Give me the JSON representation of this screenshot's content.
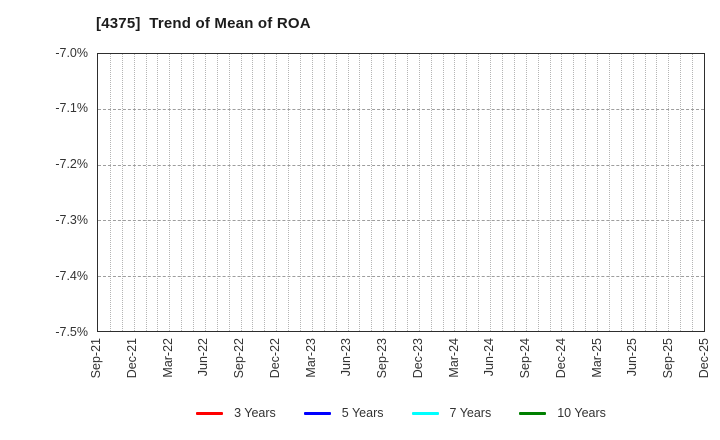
{
  "chart_data": {
    "type": "line",
    "title": "[4375]  Trend of Mean of ROA",
    "xlabel": "",
    "ylabel": "",
    "x_tick_labels": [
      "Sep-21",
      "Dec-21",
      "Mar-22",
      "Jun-22",
      "Sep-22",
      "Dec-22",
      "Mar-23",
      "Jun-23",
      "Sep-23",
      "Dec-23",
      "Mar-24",
      "Jun-24",
      "Sep-24",
      "Dec-24",
      "Mar-25",
      "Jun-25",
      "Sep-25",
      "Dec-25"
    ],
    "y_tick_labels": [
      "-7.0%",
      "-7.1%",
      "-7.2%",
      "-7.3%",
      "-7.4%",
      "-7.5%"
    ],
    "ylim": [
      -7.5,
      -7.0
    ],
    "y_tick_step_percent": 0.1,
    "x_axis": {
      "total_months": 51,
      "months_per_labeled_tick": 3,
      "minor_gridlines": "monthly-dotted"
    },
    "grid": {
      "vertical": true,
      "horizontal": true
    },
    "legend_position": "bottom-center",
    "series": [
      {
        "name": "3 Years",
        "color": "#ff0000",
        "values": []
      },
      {
        "name": "5 Years",
        "color": "#0000ff",
        "values": []
      },
      {
        "name": "7 Years",
        "color": "#00ffff",
        "values": []
      },
      {
        "name": "10 Years",
        "color": "#008000",
        "values": []
      }
    ],
    "plot_empty": true
  },
  "colors": {
    "background": "#ffffff",
    "title_text": "#1c1c1c",
    "axis_label_text": "#333333",
    "plot_border": "#2e2e2e",
    "vertical_gridline": "#b5b5b5",
    "horizontal_gridline": "#9e9e9e"
  }
}
